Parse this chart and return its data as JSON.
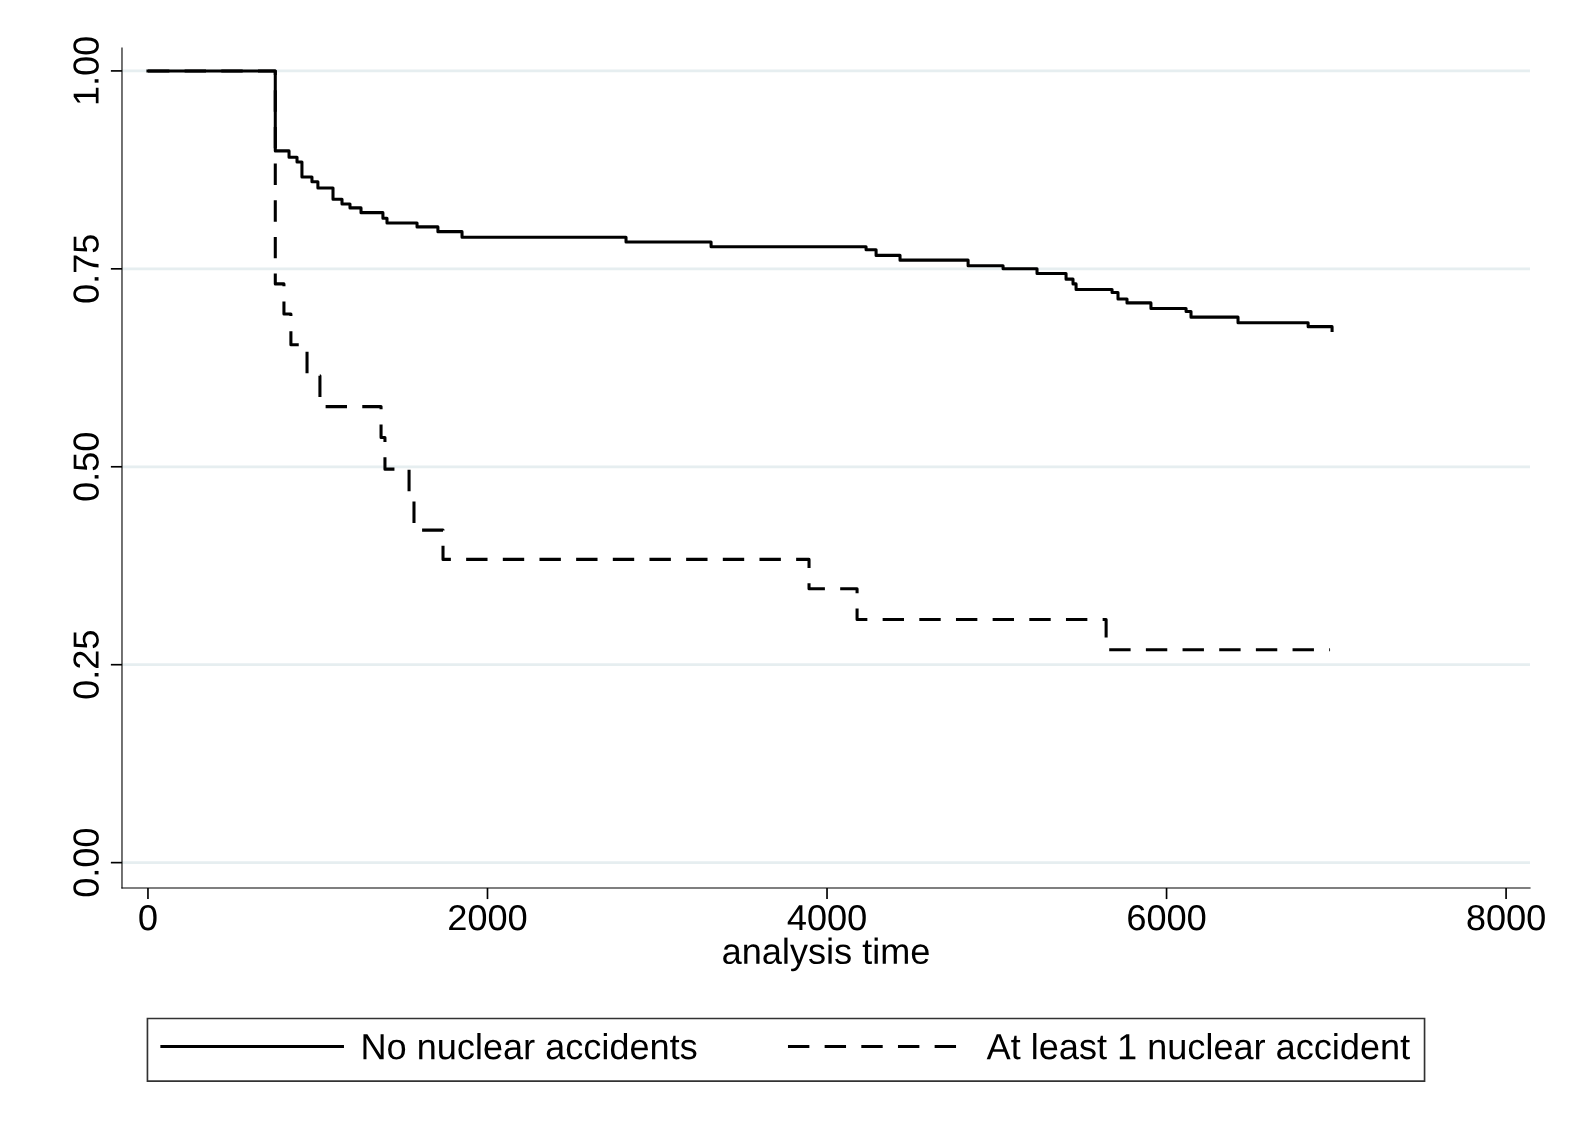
{
  "chart_data": {
    "type": "step",
    "xlabel": "analysis time",
    "xlim": [
      -153,
      8141
    ],
    "xticks": [
      0,
      2000,
      4000,
      6000,
      8000
    ],
    "ylim": [
      -0.032,
      1.029
    ],
    "yticks": [
      {
        "value": 0,
        "label": "0.00"
      },
      {
        "value": 0.25,
        "label": "0.25"
      },
      {
        "value": 0.5,
        "label": "0.50"
      },
      {
        "value": 0.75,
        "label": "0.75"
      },
      {
        "value": 1,
        "label": "1.00"
      }
    ],
    "grid": "y",
    "legend": "bottom",
    "series": [
      {
        "name": "No nuclear accidents",
        "color": "#000000",
        "line_style": "solid",
        "x": [
          0,
          750,
          831,
          878,
          907,
          966,
          1001,
          1090,
          1143,
          1190,
          1255,
          1384,
          1408,
          1585,
          1708,
          1850,
          2816,
          3317,
          4230,
          4289,
          4430,
          4831,
          5037,
          5237,
          5408,
          5449,
          5467,
          5679,
          5714,
          5767,
          5908,
          6115,
          6144,
          6421,
          6834,
          6975
        ],
        "values": [
          1.0,
          0.899,
          0.891,
          0.885,
          0.866,
          0.86,
          0.852,
          0.838,
          0.832,
          0.827,
          0.821,
          0.814,
          0.808,
          0.803,
          0.797,
          0.79,
          0.784,
          0.778,
          0.774,
          0.767,
          0.761,
          0.754,
          0.75,
          0.744,
          0.737,
          0.731,
          0.724,
          0.72,
          0.712,
          0.707,
          0.7,
          0.696,
          0.689,
          0.682,
          0.677,
          0.672
        ]
      },
      {
        "name": "At least 1 nuclear accident",
        "color": "#000000",
        "line_style": "dashed",
        "x": [
          0,
          750,
          801,
          842,
          937,
          1013,
          1373,
          1396,
          1538,
          1567,
          1738,
          3894,
          4177,
          5644,
          6963
        ],
        "values": [
          1.0,
          0.731,
          0.693,
          0.654,
          0.615,
          0.576,
          0.537,
          0.497,
          0.46,
          0.42,
          0.383,
          0.346,
          0.307,
          0.269,
          0.269
        ]
      }
    ]
  }
}
